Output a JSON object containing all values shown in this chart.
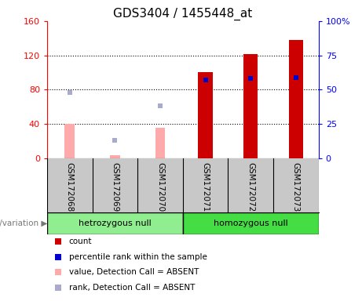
{
  "title": "GDS3404 / 1455448_at",
  "samples": [
    "GSM172068",
    "GSM172069",
    "GSM172070",
    "GSM172071",
    "GSM172072",
    "GSM172073"
  ],
  "genotype_labels": [
    "hetrozygous null",
    "homozygous null"
  ],
  "count_values": [
    null,
    null,
    null,
    100,
    121,
    138
  ],
  "rank_pct_values": [
    null,
    null,
    null,
    57,
    58,
    59
  ],
  "absent_value_bars": [
    40,
    3,
    35,
    null,
    null,
    null
  ],
  "absent_rank_pct": [
    48,
    13,
    38,
    null,
    null,
    null
  ],
  "ylim_left": [
    0,
    160
  ],
  "ylim_right": [
    0,
    100
  ],
  "yticks_left": [
    0,
    40,
    80,
    120,
    160
  ],
  "ytick_labels_left": [
    "0",
    "40",
    "80",
    "120",
    "160"
  ],
  "yticks_right": [
    0,
    25,
    50,
    75,
    100
  ],
  "ytick_labels_right": [
    "0",
    "25",
    "50",
    "75",
    "100%"
  ],
  "count_color": "#cc0000",
  "rank_color": "#0000cc",
  "absent_bar_color": "#ffaaaa",
  "absent_dot_color": "#aaaacc",
  "bg_color": "#ffffff",
  "sample_bg_color": "#c8c8c8",
  "genotype_color_hetro": "#90ee90",
  "genotype_color_homo": "#44dd44",
  "title_fontsize": 11
}
